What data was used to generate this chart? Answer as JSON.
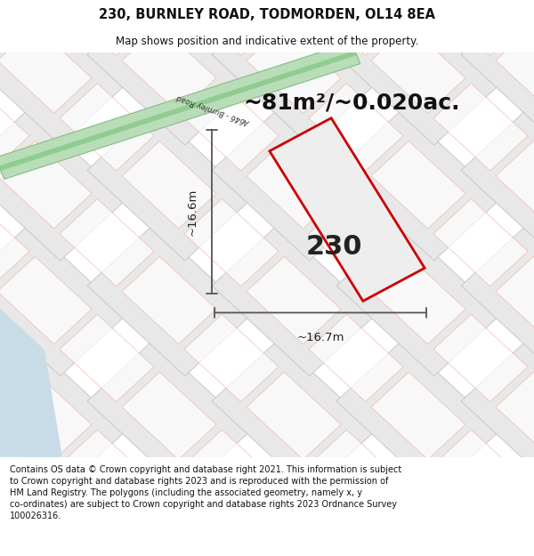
{
  "title": "230, BURNLEY ROAD, TODMORDEN, OL14 8EA",
  "subtitle": "Map shows position and indicative extent of the property.",
  "area_text": "~81m²/~0.020ac.",
  "label_230": "230",
  "dim_height": "~16.6m",
  "dim_width": "~16.7m",
  "road_label": "A646 - Burnley Road",
  "footer": "Contains OS data © Crown copyright and database right 2021. This information is subject to Crown copyright and database rights 2023 and is reproduced with the permission of HM Land Registry. The polygons (including the associated geometry, namely x, y co-ordinates) are subject to Crown copyright and database rights 2023 Ordnance Survey 100026316.",
  "map_bg": "#ffffff",
  "road_color": "#a8d8a8",
  "road_edge_color": "#78b878",
  "road_center_color": "#6ab86a",
  "water_color": "#ccdde8",
  "parcel_fill_dark": "#e8e8e8",
  "parcel_fill_light": "#f4f4f4",
  "parcel_edge_pink": "#f0b0a0",
  "parcel_edge_gray": "#c8c8c8",
  "property_fill": "#eeeeee",
  "property_edge": "#cc0000",
  "dim_line_color": "#555555",
  "text_color": "#222222",
  "title_color": "#111111"
}
